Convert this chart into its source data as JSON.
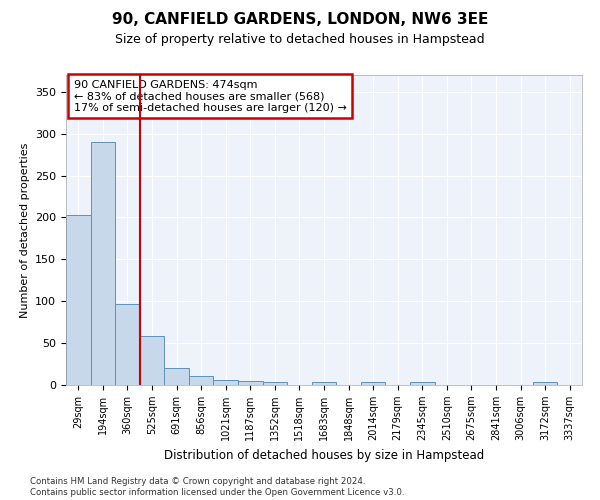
{
  "title": "90, CANFIELD GARDENS, LONDON, NW6 3EE",
  "subtitle": "Size of property relative to detached houses in Hampstead",
  "xlabel": "Distribution of detached houses by size in Hampstead",
  "ylabel": "Number of detached properties",
  "bar_color": "#c8d8eb",
  "bar_edge_color": "#6090b8",
  "background_color": "#ffffff",
  "plot_bg_color": "#eef2fa",
  "grid_color": "#ffffff",
  "vline_color": "#cc0000",
  "vline_position": 2.5,
  "annotation_text": "90 CANFIELD GARDENS: 474sqm\n← 83% of detached houses are smaller (568)\n17% of semi-detached houses are larger (120) →",
  "annotation_edge_color": "#cc0000",
  "bins": [
    "29sqm",
    "194sqm",
    "360sqm",
    "525sqm",
    "691sqm",
    "856sqm",
    "1021sqm",
    "1187sqm",
    "1352sqm",
    "1518sqm",
    "1683sqm",
    "1848sqm",
    "2014sqm",
    "2179sqm",
    "2345sqm",
    "2510sqm",
    "2675sqm",
    "2841sqm",
    "3006sqm",
    "3172sqm",
    "3337sqm"
  ],
  "values": [
    203,
    290,
    97,
    59,
    20,
    11,
    6,
    5,
    3,
    0,
    3,
    0,
    3,
    0,
    3,
    0,
    0,
    0,
    0,
    3,
    0
  ],
  "ylim": [
    0,
    370
  ],
  "yticks": [
    0,
    50,
    100,
    150,
    200,
    250,
    300,
    350
  ],
  "footnote1": "Contains HM Land Registry data © Crown copyright and database right 2024.",
  "footnote2": "Contains public sector information licensed under the Open Government Licence v3.0."
}
